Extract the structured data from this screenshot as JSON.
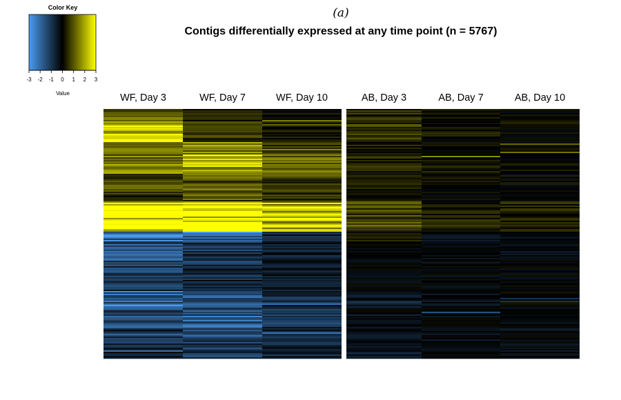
{
  "panel_label": "(a)",
  "chart_data": {
    "type": "heatmap",
    "title": "Contigs differentially expressed at any time point (n = 5767)",
    "columns": [
      "WF, Day 3",
      "WF, Day 7",
      "WF, Day 10",
      "AB, Day 3",
      "AB, Day 7",
      "AB, Day 10"
    ],
    "color_key": {
      "title": "Color Key",
      "label": "Value",
      "range": [
        -3,
        3
      ],
      "ticks": [
        -3,
        -2,
        -1,
        0,
        1,
        2,
        3
      ],
      "colors": {
        "low": "#4a9bf0",
        "mid": "#000000",
        "high": "#ffff00"
      }
    },
    "rows": 5767,
    "row_segments": [
      {
        "share": 0.05,
        "values": [
          1.0,
          0.3,
          0.1,
          0.5,
          0.1,
          0.0
        ]
      },
      {
        "share": 0.08,
        "values": [
          2.5,
          0.6,
          0.2,
          0.6,
          0.2,
          0.1
        ]
      },
      {
        "share": 0.05,
        "values": [
          1.5,
          1.5,
          0.8,
          0.3,
          0.0,
          0.0
        ]
      },
      {
        "share": 0.08,
        "values": [
          1.4,
          2.0,
          1.2,
          0.4,
          0.2,
          0.1
        ]
      },
      {
        "share": 0.07,
        "values": [
          0.9,
          1.0,
          0.7,
          0.2,
          0.1,
          0.1
        ]
      },
      {
        "share": 0.04,
        "values": [
          0.5,
          0.9,
          0.6,
          0.1,
          0.1,
          0.0
        ]
      },
      {
        "share": 0.12,
        "values": [
          3.0,
          3.0,
          2.2,
          0.8,
          0.3,
          0.3
        ]
      },
      {
        "share": 0.04,
        "values": [
          -2.0,
          -2.3,
          -0.7,
          0.2,
          -0.3,
          -0.1
        ]
      },
      {
        "share": 0.09,
        "values": [
          -1.5,
          -1.0,
          -0.5,
          -0.2,
          -0.2,
          -0.2
        ]
      },
      {
        "share": 0.11,
        "values": [
          -1.1,
          -0.7,
          -0.4,
          -0.2,
          -0.1,
          -0.1
        ]
      },
      {
        "share": 0.07,
        "values": [
          -1.8,
          -1.5,
          -0.9,
          -0.5,
          -0.2,
          -0.1
        ]
      },
      {
        "share": 0.08,
        "values": [
          -1.3,
          -1.8,
          -1.0,
          -0.3,
          -0.2,
          -0.1
        ]
      },
      {
        "share": 0.12,
        "values": [
          -0.8,
          -1.1,
          -0.7,
          -0.3,
          -0.2,
          -0.2
        ]
      }
    ]
  }
}
